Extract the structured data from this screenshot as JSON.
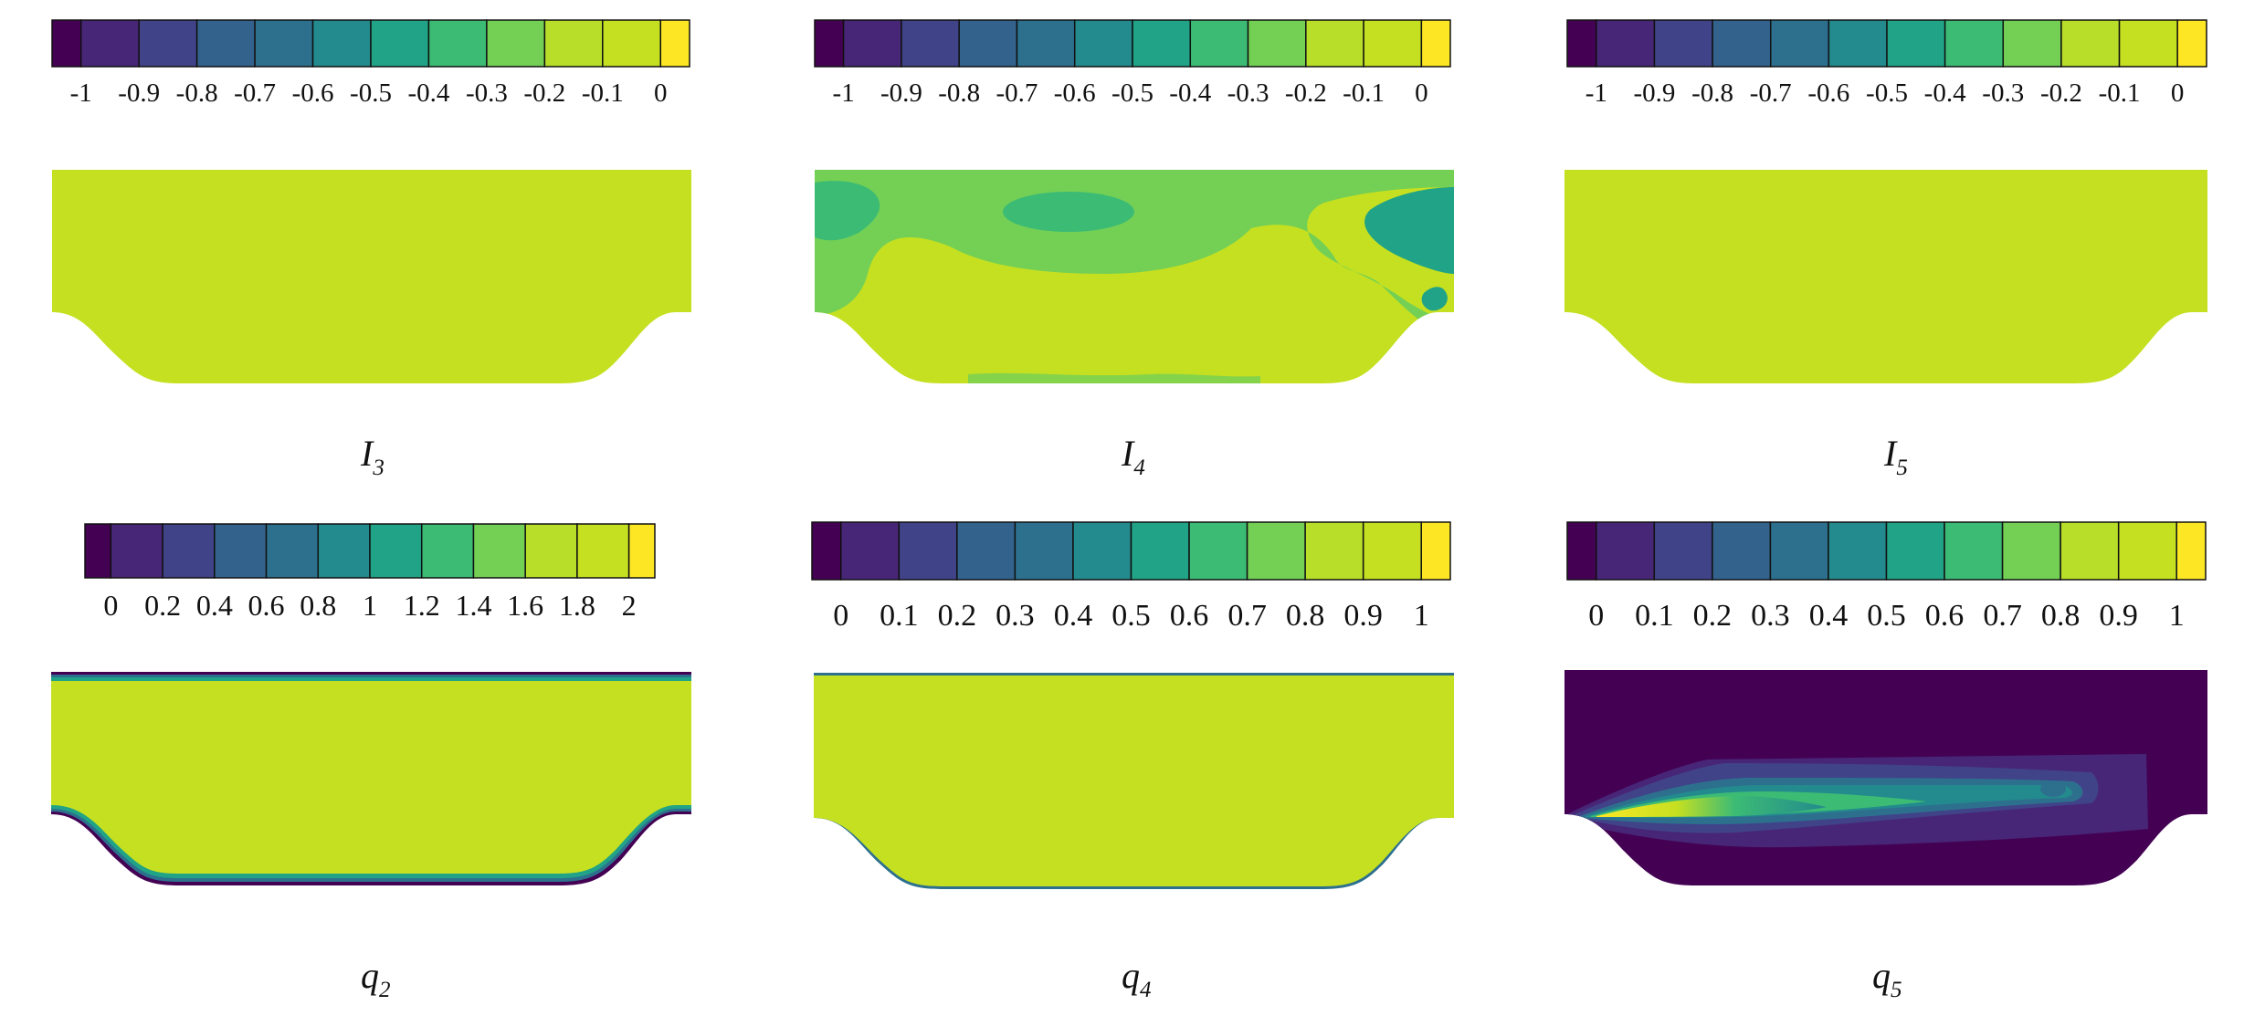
{
  "colormap": [
    "#440154",
    "#482677",
    "#404388",
    "#33638d",
    "#2d708e",
    "#238a8d",
    "#20a386",
    "#3cbb75",
    "#73d055",
    "#b8de29",
    "#c5e021",
    "#fde725"
  ],
  "field_color": "#c5e021",
  "panels": [
    {
      "id": "I3",
      "caption": {
        "main": "I",
        "sub": "3"
      },
      "colorbar_ticks": [
        "-1",
        "-0.9",
        "-0.8",
        "-0.7",
        "-0.6",
        "-0.5",
        "-0.4",
        "-0.3",
        "-0.2",
        "-0.1",
        "0"
      ]
    },
    {
      "id": "I4",
      "caption": {
        "main": "I",
        "sub": "4"
      },
      "colorbar_ticks": [
        "-1",
        "-0.9",
        "-0.8",
        "-0.7",
        "-0.6",
        "-0.5",
        "-0.4",
        "-0.3",
        "-0.2",
        "-0.1",
        "0"
      ]
    },
    {
      "id": "I5",
      "caption": {
        "main": "I",
        "sub": "5"
      },
      "colorbar_ticks": [
        "-1",
        "-0.9",
        "-0.8",
        "-0.7",
        "-0.6",
        "-0.5",
        "-0.4",
        "-0.3",
        "-0.2",
        "-0.1",
        "0"
      ]
    },
    {
      "id": "q2",
      "caption": {
        "main": "q",
        "sub": "2"
      },
      "colorbar_ticks": [
        "0",
        "0.2",
        "0.4",
        "0.6",
        "0.8",
        "1",
        "1.2",
        "1.4",
        "1.6",
        "1.8",
        "2"
      ]
    },
    {
      "id": "q4",
      "caption": {
        "main": "q",
        "sub": "4"
      },
      "colorbar_ticks": [
        "0",
        "0.1",
        "0.2",
        "0.3",
        "0.4",
        "0.5",
        "0.6",
        "0.7",
        "0.8",
        "0.9",
        "1"
      ]
    },
    {
      "id": "q5",
      "caption": {
        "main": "q",
        "sub": "5"
      },
      "colorbar_ticks": [
        "0",
        "0.1",
        "0.2",
        "0.3",
        "0.4",
        "0.5",
        "0.6",
        "0.7",
        "0.8",
        "0.9",
        "1"
      ]
    }
  ]
}
